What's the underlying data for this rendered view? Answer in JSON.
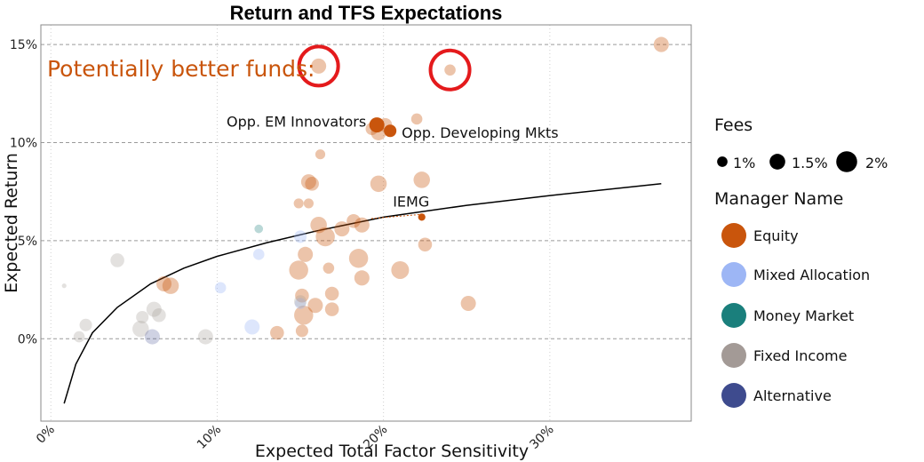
{
  "chart_data": {
    "type": "scatter",
    "title": "Return and TFS Expectations",
    "xlabel": "Expected Total Factor Sensitivity",
    "ylabel": "Expected Return",
    "xlim": [
      -0.6,
      38.5
    ],
    "ylim": [
      -4.2,
      16.0
    ],
    "x_ticks": [
      0,
      10,
      20,
      30
    ],
    "x_tick_labels": [
      "0%",
      "10%",
      "20%",
      "30%"
    ],
    "y_ticks": [
      0,
      5,
      10,
      15
    ],
    "y_tick_labels": [
      "0%",
      "5%",
      "10%",
      "15%"
    ],
    "hgrid": "dashed",
    "vgrid": "dotted",
    "callout": {
      "text": "Potentially better funds:",
      "color": "#C9550C"
    },
    "highlighted_points": [
      {
        "x": 16.1,
        "y": 13.9
      },
      {
        "x": 24.0,
        "y": 13.7
      }
    ],
    "annotations": [
      {
        "text": "Opp. EM Innovators",
        "x": 19.6,
        "y": 10.9
      },
      {
        "text": "Opp. Developing Mkts",
        "x": 20.4,
        "y": 10.6
      },
      {
        "text": "IEMG",
        "x": 22.3,
        "y": 6.2
      }
    ],
    "fit_curve": {
      "type": "log",
      "x": [
        0.8,
        1.5,
        2.5,
        4,
        6,
        8,
        10,
        13,
        16,
        20,
        25,
        30,
        36.7
      ],
      "y": [
        -3.3,
        -1.3,
        0.3,
        1.6,
        2.8,
        3.6,
        4.2,
        4.9,
        5.5,
        6.2,
        6.8,
        7.3,
        7.9
      ]
    },
    "legend": {
      "fees_title": "Fees",
      "fees": [
        {
          "label": "1%",
          "fee": 1
        },
        {
          "label": "1.5%",
          "fee": 1.5
        },
        {
          "label": "2%",
          "fee": 2
        }
      ],
      "manager_title": "Manager Name",
      "categories": [
        {
          "label": "Equity",
          "color": "#C9550C"
        },
        {
          "label": "Mixed Allocation",
          "color": "#9DB6F5"
        },
        {
          "label": "Money Market",
          "color": "#1A7F7C"
        },
        {
          "label": "Fixed Income",
          "color": "#A39A96"
        },
        {
          "label": "Alternative",
          "color": "#3E4B8E"
        }
      ]
    },
    "series": [
      {
        "name": "Equity",
        "opacity": 0.35,
        "points": [
          {
            "x": 36.7,
            "y": 15.0,
            "fee": 1.5
          },
          {
            "x": 16.1,
            "y": 13.9,
            "fee": 1.5
          },
          {
            "x": 24.0,
            "y": 13.7,
            "fee": 1.2
          },
          {
            "x": 22.0,
            "y": 11.2,
            "fee": 1.2
          },
          {
            "x": 19.7,
            "y": 10.5,
            "fee": 1.5
          },
          {
            "x": 19.3,
            "y": 10.7,
            "fee": 1.3
          },
          {
            "x": 20.1,
            "y": 10.9,
            "fee": 1.4
          },
          {
            "x": 16.2,
            "y": 9.4,
            "fee": 1.1
          },
          {
            "x": 22.3,
            "y": 8.1,
            "fee": 1.6
          },
          {
            "x": 15.5,
            "y": 8.0,
            "fee": 1.5
          },
          {
            "x": 15.7,
            "y": 7.9,
            "fee": 1.4
          },
          {
            "x": 19.7,
            "y": 7.9,
            "fee": 1.6
          },
          {
            "x": 15.5,
            "y": 6.9,
            "fee": 1.1
          },
          {
            "x": 14.9,
            "y": 6.9,
            "fee": 1.1
          },
          {
            "x": 16.1,
            "y": 5.8,
            "fee": 1.6
          },
          {
            "x": 18.2,
            "y": 6.0,
            "fee": 1.4
          },
          {
            "x": 18.7,
            "y": 5.8,
            "fee": 1.5
          },
          {
            "x": 17.5,
            "y": 5.6,
            "fee": 1.5
          },
          {
            "x": 16.5,
            "y": 5.2,
            "fee": 1.8
          },
          {
            "x": 22.5,
            "y": 4.8,
            "fee": 1.4
          },
          {
            "x": 15.3,
            "y": 4.3,
            "fee": 1.5
          },
          {
            "x": 18.5,
            "y": 4.1,
            "fee": 1.8
          },
          {
            "x": 14.9,
            "y": 3.5,
            "fee": 1.8
          },
          {
            "x": 21.0,
            "y": 3.5,
            "fee": 1.7
          },
          {
            "x": 16.7,
            "y": 3.6,
            "fee": 1.2
          },
          {
            "x": 18.7,
            "y": 3.1,
            "fee": 1.5
          },
          {
            "x": 6.8,
            "y": 2.8,
            "fee": 1.5
          },
          {
            "x": 7.2,
            "y": 2.7,
            "fee": 1.6
          },
          {
            "x": 15.1,
            "y": 2.2,
            "fee": 1.4
          },
          {
            "x": 16.9,
            "y": 2.3,
            "fee": 1.4
          },
          {
            "x": 15.9,
            "y": 1.7,
            "fee": 1.5
          },
          {
            "x": 16.9,
            "y": 1.5,
            "fee": 1.4
          },
          {
            "x": 25.1,
            "y": 1.8,
            "fee": 1.5
          },
          {
            "x": 15.2,
            "y": 1.2,
            "fee": 1.8
          },
          {
            "x": 13.6,
            "y": 0.3,
            "fee": 1.4
          },
          {
            "x": 15.1,
            "y": 0.4,
            "fee": 1.3
          }
        ]
      },
      {
        "name": "Equity (highlighted)",
        "opacity": 1.0,
        "points": [
          {
            "x": 19.6,
            "y": 10.9,
            "fee": 1.5
          },
          {
            "x": 20.4,
            "y": 10.6,
            "fee": 1.3
          },
          {
            "x": 22.3,
            "y": 6.2,
            "fee": 0.9
          }
        ]
      },
      {
        "name": "Mixed Allocation",
        "opacity": 0.35,
        "points": [
          {
            "x": 15.0,
            "y": 5.2,
            "fee": 1.3
          },
          {
            "x": 12.5,
            "y": 4.3,
            "fee": 1.2
          },
          {
            "x": 10.2,
            "y": 2.6,
            "fee": 1.2
          },
          {
            "x": 12.1,
            "y": 0.6,
            "fee": 1.5
          },
          {
            "x": 15.0,
            "y": 1.8,
            "fee": 1.2
          }
        ]
      },
      {
        "name": "Money Market",
        "opacity": 0.3,
        "points": [
          {
            "x": 12.5,
            "y": 5.6,
            "fee": 1.0
          }
        ]
      },
      {
        "name": "Fixed Income",
        "opacity": 0.3,
        "points": [
          {
            "x": 0.8,
            "y": 2.7,
            "fee": 0.7
          },
          {
            "x": 4.0,
            "y": 4.0,
            "fee": 1.4
          },
          {
            "x": 2.1,
            "y": 0.7,
            "fee": 1.3
          },
          {
            "x": 1.7,
            "y": 0.1,
            "fee": 1.2
          },
          {
            "x": 5.5,
            "y": 1.1,
            "fee": 1.3
          },
          {
            "x": 6.2,
            "y": 1.5,
            "fee": 1.5
          },
          {
            "x": 6.5,
            "y": 1.2,
            "fee": 1.4
          },
          {
            "x": 5.4,
            "y": 0.5,
            "fee": 1.6
          },
          {
            "x": 9.3,
            "y": 0.1,
            "fee": 1.5
          },
          {
            "x": 15.0,
            "y": 1.9,
            "fee": 1.3
          }
        ]
      },
      {
        "name": "Alternative",
        "opacity": 0.25,
        "points": [
          {
            "x": 6.1,
            "y": 0.1,
            "fee": 1.5
          }
        ]
      }
    ]
  }
}
